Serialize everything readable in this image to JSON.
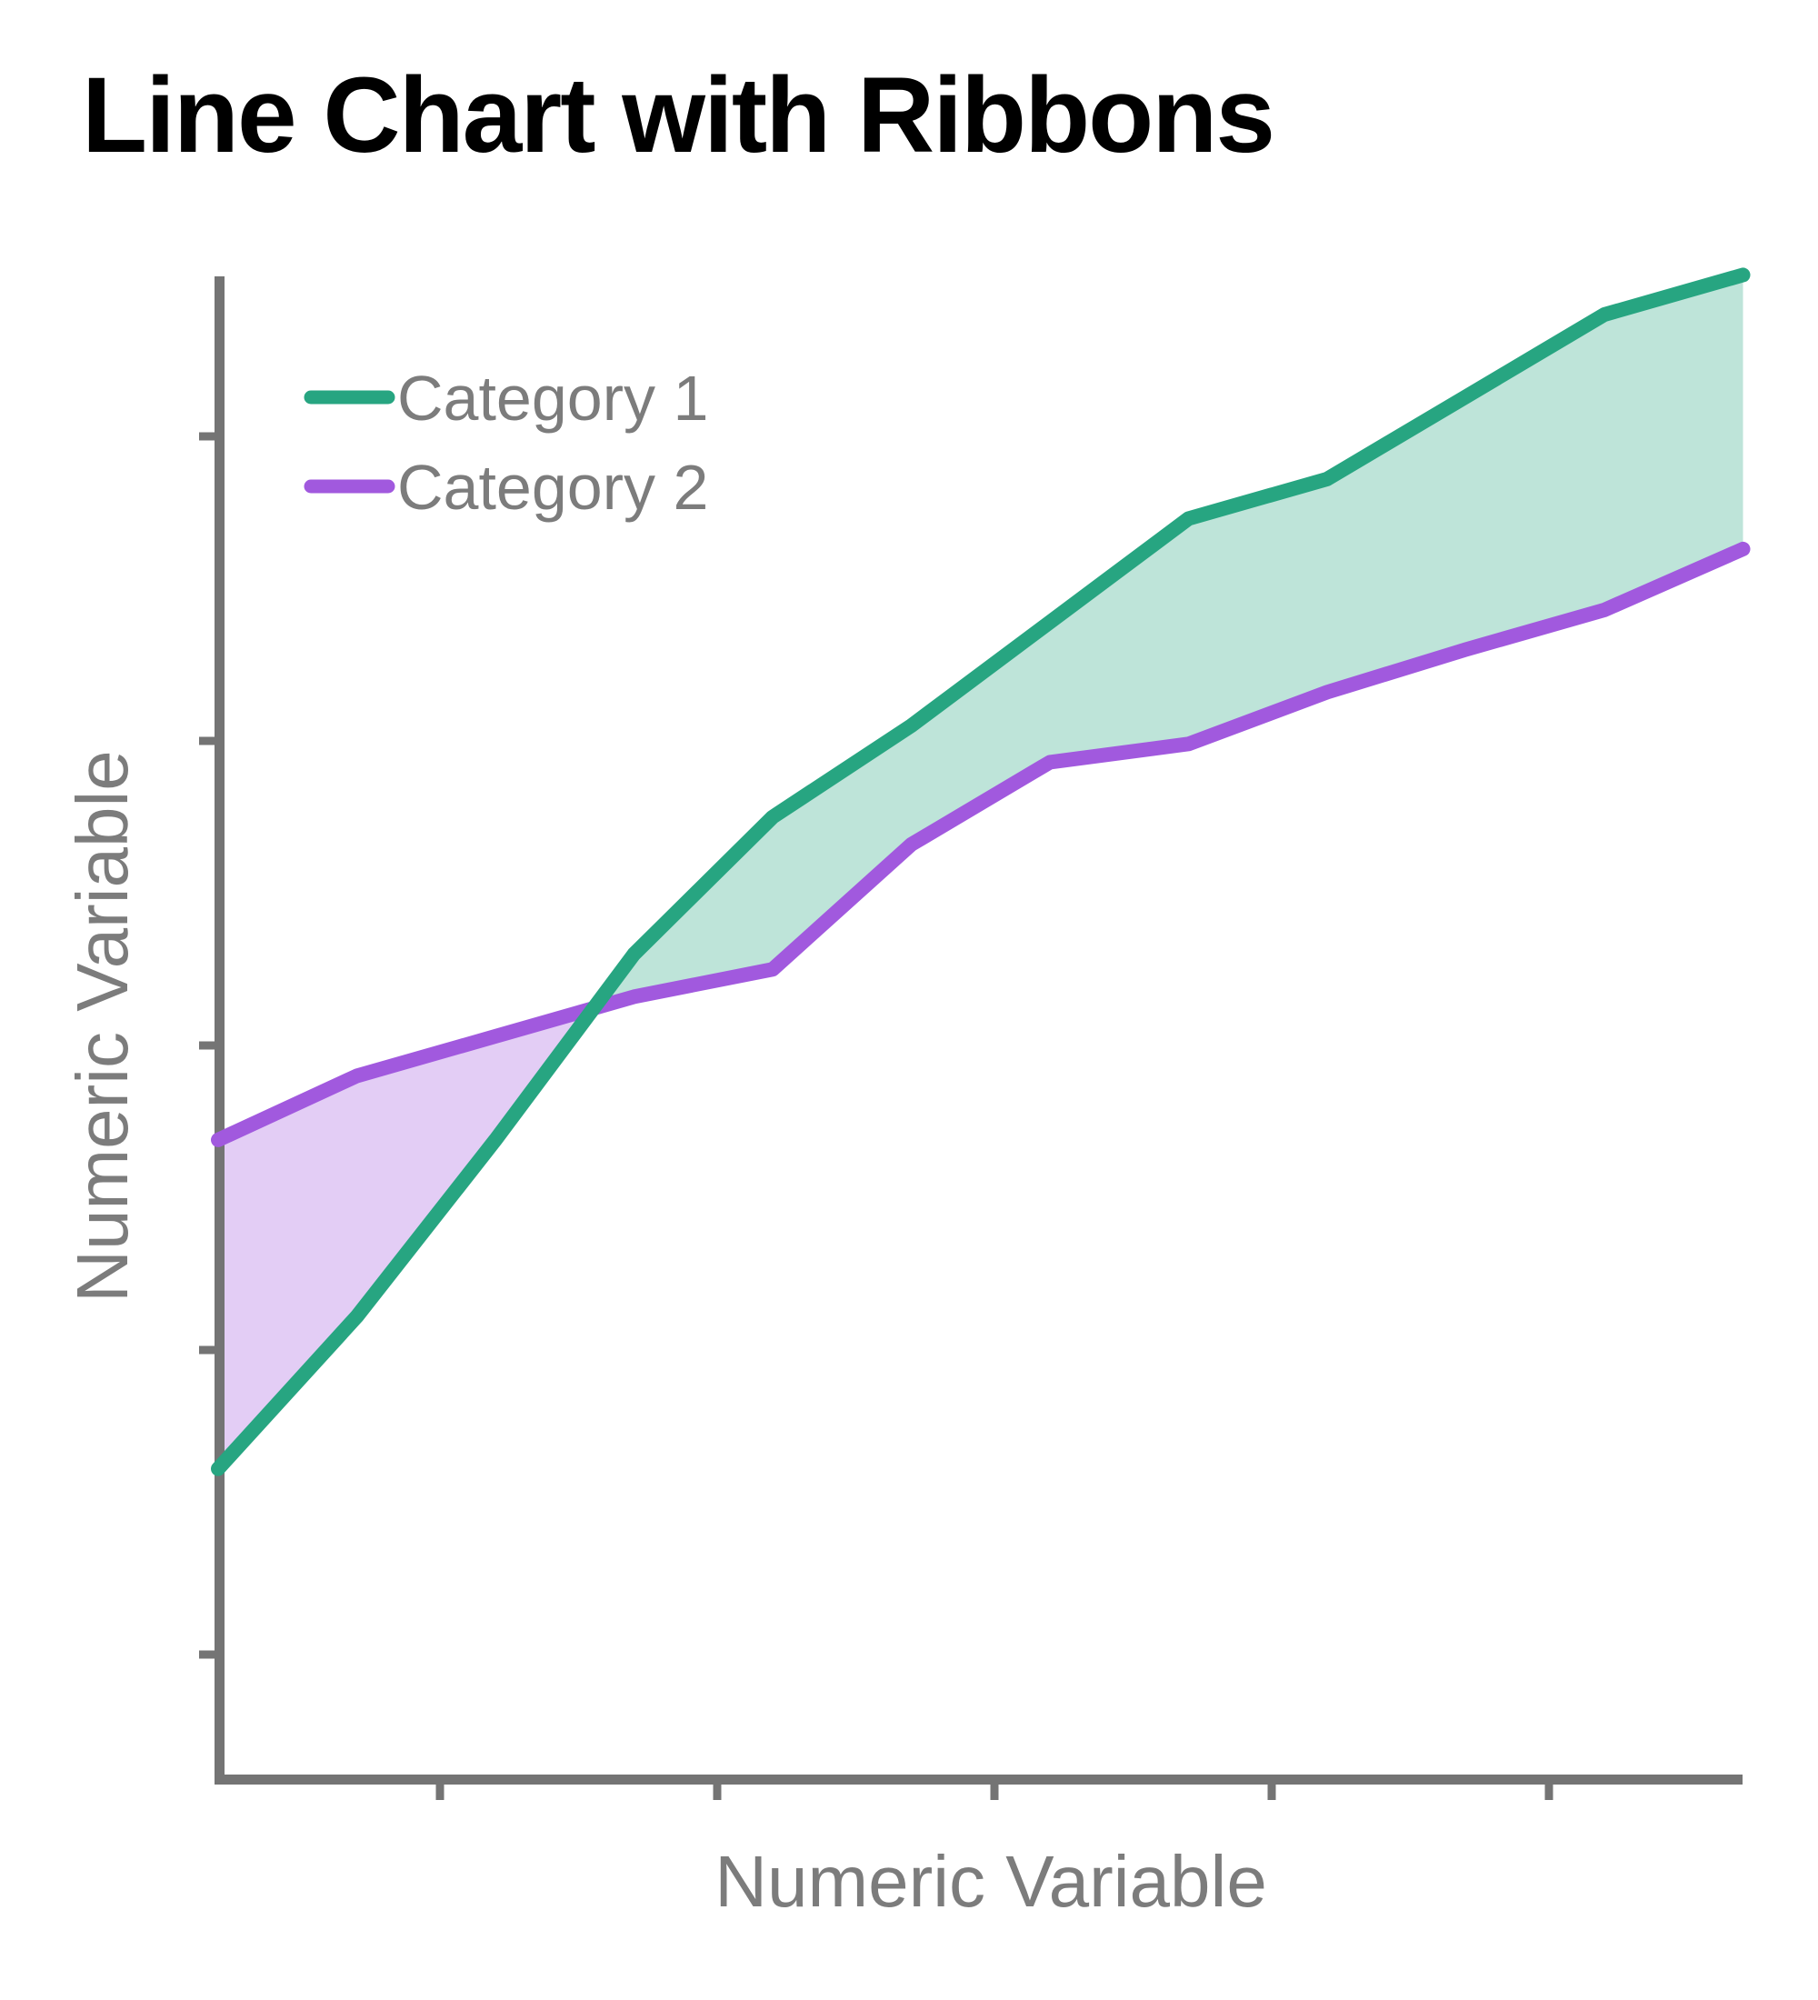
{
  "title": "Line Chart with Ribbons",
  "colors": {
    "category1": "#27A581",
    "category2": "#A159DE",
    "axis": "#747474",
    "label_text": "#7C7C7C",
    "title_text": "#000000",
    "ribbon_opacity": 0.3
  },
  "legend": {
    "entries": [
      {
        "label": "Category 1",
        "color": "#27A581"
      },
      {
        "label": "Category 2",
        "color": "#A159DE"
      }
    ]
  },
  "chart_data": {
    "type": "line",
    "title": "Line Chart with Ribbons",
    "xlabel": "Numeric Variable",
    "ylabel": "Numeric Variable",
    "legend_position": "top-left-inside",
    "grid": false,
    "axis_tick_labels_shown": false,
    "x": [
      0.2,
      0.7,
      1.2,
      1.7,
      2.2,
      2.7,
      3.2,
      3.7,
      4.2,
      4.7,
      5.2,
      5.7
    ],
    "x_axis": {
      "ticks": [
        1,
        2,
        3,
        4,
        5
      ],
      "range": [
        0.2,
        5.7
      ]
    },
    "y_axis": {
      "ticks": [
        1,
        2,
        3,
        4,
        5
      ],
      "range": [
        0.55,
        5.95
      ]
    },
    "series": [
      {
        "name": "Category 1",
        "color": "#27A581",
        "ribbon": true,
        "values": [
          1.61,
          2.11,
          2.69,
          3.3,
          3.75,
          4.05,
          4.39,
          4.73,
          4.86,
          5.13,
          5.4,
          5.53
        ]
      },
      {
        "name": "Category 2",
        "color": "#A159DE",
        "ribbon": true,
        "values": [
          2.69,
          2.9,
          3.03,
          3.16,
          3.25,
          3.66,
          3.93,
          3.99,
          4.16,
          4.3,
          4.43,
          4.63
        ]
      }
    ]
  }
}
